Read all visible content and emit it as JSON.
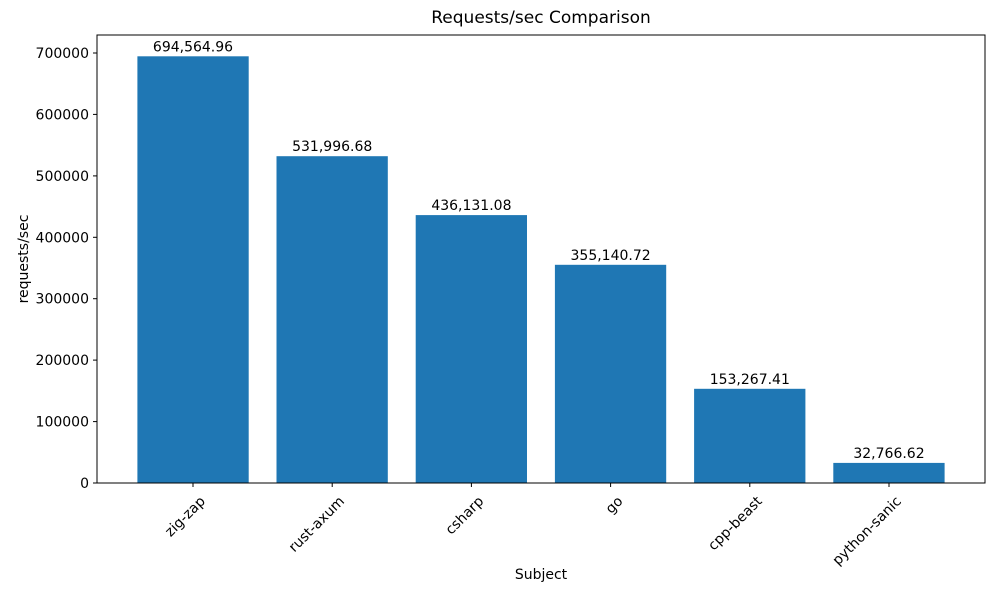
{
  "chart_data": {
    "type": "bar",
    "title": "Requests/sec Comparison",
    "xlabel": "Subject",
    "ylabel": "requests/sec",
    "categories": [
      "zig-zap",
      "rust-axum",
      "csharp",
      "go",
      "cpp-beast",
      "python-sanic"
    ],
    "values": [
      694564.96,
      531996.68,
      436131.08,
      355140.72,
      153267.41,
      32766.62
    ],
    "value_labels": [
      "694,564.96",
      "531,996.68",
      "436,131.08",
      "355,140.72",
      "153,267.41",
      "32,766.62"
    ],
    "ylim": [
      0,
      729293
    ],
    "yticks": [
      0,
      100000,
      200000,
      300000,
      400000,
      500000,
      600000,
      700000
    ],
    "x_tick_rotation": 45,
    "bar_color": "#1f77b4",
    "axis_color": "#000000",
    "grid": false,
    "legend": null
  }
}
